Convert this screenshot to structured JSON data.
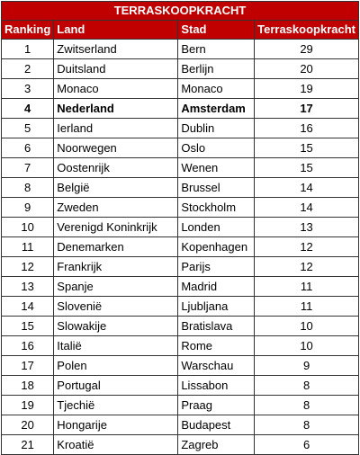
{
  "title": "TERRASKOOPKRACHT",
  "headers": {
    "rank": "Ranking",
    "land": "Land",
    "city": "Stad",
    "score": "Terraskoopkracht"
  },
  "highlight_row": 4,
  "rows": [
    {
      "rank": "1",
      "land": "Zwitserland",
      "city": "Bern",
      "score": "29"
    },
    {
      "rank": "2",
      "land": "Duitsland",
      "city": "Berlijn",
      "score": "20"
    },
    {
      "rank": "3",
      "land": "Monaco",
      "city": "Monaco",
      "score": "19"
    },
    {
      "rank": "4",
      "land": "Nederland",
      "city": "Amsterdam",
      "score": "17"
    },
    {
      "rank": "5",
      "land": "Ierland",
      "city": "Dublin",
      "score": "16"
    },
    {
      "rank": "6",
      "land": "Noorwegen",
      "city": "Oslo",
      "score": "15"
    },
    {
      "rank": "7",
      "land": "Oostenrijk",
      "city": "Wenen",
      "score": "15"
    },
    {
      "rank": "8",
      "land": "België",
      "city": "Brussel",
      "score": "14"
    },
    {
      "rank": "9",
      "land": "Zweden",
      "city": "Stockholm",
      "score": "14"
    },
    {
      "rank": "10",
      "land": "Verenigd Koninkrijk",
      "city": "Londen",
      "score": "13"
    },
    {
      "rank": "11",
      "land": "Denemarken",
      "city": "Kopenhagen",
      "score": "12"
    },
    {
      "rank": "12",
      "land": "Frankrijk",
      "city": "Parijs",
      "score": "12"
    },
    {
      "rank": "13",
      "land": "Spanje",
      "city": "Madrid",
      "score": "11"
    },
    {
      "rank": "14",
      "land": "Slovenië",
      "city": "Ljubljana",
      "score": "11"
    },
    {
      "rank": "15",
      "land": "Slowakije",
      "city": "Bratislava",
      "score": "10"
    },
    {
      "rank": "16",
      "land": "Italië",
      "city": "Rome",
      "score": "10"
    },
    {
      "rank": "17",
      "land": "Polen",
      "city": "Warschau",
      "score": "9"
    },
    {
      "rank": "18",
      "land": "Portugal",
      "city": "Lissabon",
      "score": "8"
    },
    {
      "rank": "19",
      "land": "Tjechië",
      "city": "Praag",
      "score": "8"
    },
    {
      "rank": "20",
      "land": "Hongarije",
      "city": "Budapest",
      "score": "8"
    },
    {
      "rank": "21",
      "land": "Kroatië",
      "city": "Zagreb",
      "score": "6"
    }
  ]
}
